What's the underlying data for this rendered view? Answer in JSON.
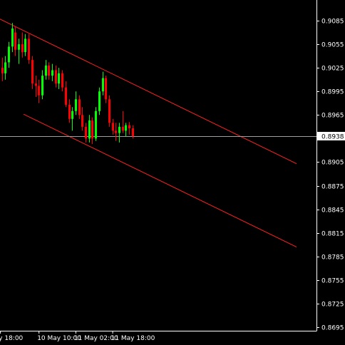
{
  "chart_data": {
    "type": "candlestick",
    "y_ticks": [
      "0.9085",
      "0.9055",
      "0.9025",
      "0.8995",
      "0.8965",
      "0.8905",
      "0.8875",
      "0.8845",
      "0.8815",
      "0.8785",
      "0.8755",
      "0.8725",
      "0.8695"
    ],
    "y_tick_values": [
      0.9085,
      0.9055,
      0.9025,
      0.8995,
      0.8965,
      0.8905,
      0.8875,
      0.8845,
      0.8815,
      0.8785,
      0.8755,
      0.8725,
      0.8695
    ],
    "ylim": [
      0.8688,
      0.9105
    ],
    "x_labels": [
      "y 18:00",
      "10 May 10:00",
      "11 May 02:00",
      "11 May 18:00"
    ],
    "x_label_index": [
      -0.5,
      11,
      22,
      33
    ],
    "current_price": 0.8938,
    "current_price_label": "0.8938",
    "colors": {
      "up": "#00ff00",
      "down": "#ff0000",
      "channel": "#ff2020",
      "price_line": "#a0a0a0",
      "axis": "#ffffff"
    },
    "channel": [
      {
        "name": "upper",
        "start": {
          "index": -2,
          "value": 0.909
        },
        "end": {
          "index": 88,
          "value": 0.8903
        }
      },
      {
        "name": "lower",
        "start": {
          "index": 6.5,
          "value": 0.8966
        },
        "end": {
          "index": 88,
          "value": 0.8797
        }
      }
    ],
    "candles": [
      {
        "o": 0.9025,
        "h": 0.9038,
        "l": 0.9008,
        "c": 0.9018
      },
      {
        "o": 0.9018,
        "h": 0.904,
        "l": 0.901,
        "c": 0.9032
      },
      {
        "o": 0.9032,
        "h": 0.9058,
        "l": 0.9025,
        "c": 0.9052
      },
      {
        "o": 0.9052,
        "h": 0.9082,
        "l": 0.9045,
        "c": 0.9075
      },
      {
        "o": 0.907,
        "h": 0.9078,
        "l": 0.904,
        "c": 0.9048
      },
      {
        "o": 0.9048,
        "h": 0.9062,
        "l": 0.903,
        "c": 0.9055
      },
      {
        "o": 0.9055,
        "h": 0.907,
        "l": 0.9038,
        "c": 0.9045
      },
      {
        "o": 0.9045,
        "h": 0.9068,
        "l": 0.904,
        "c": 0.9062
      },
      {
        "o": 0.9062,
        "h": 0.9068,
        "l": 0.903,
        "c": 0.9035
      },
      {
        "o": 0.9035,
        "h": 0.904,
        "l": 0.8998,
        "c": 0.9005
      },
      {
        "o": 0.9005,
        "h": 0.9015,
        "l": 0.8988,
        "c": 0.9002
      },
      {
        "o": 0.9002,
        "h": 0.901,
        "l": 0.898,
        "c": 0.899
      },
      {
        "o": 0.899,
        "h": 0.9022,
        "l": 0.8985,
        "c": 0.9015
      },
      {
        "o": 0.9015,
        "h": 0.9035,
        "l": 0.901,
        "c": 0.9028
      },
      {
        "o": 0.9028,
        "h": 0.9032,
        "l": 0.901,
        "c": 0.9015
      },
      {
        "o": 0.9015,
        "h": 0.903,
        "l": 0.9008,
        "c": 0.9022
      },
      {
        "o": 0.9022,
        "h": 0.9028,
        "l": 0.9,
        "c": 0.9005
      },
      {
        "o": 0.9005,
        "h": 0.9025,
        "l": 0.8998,
        "c": 0.9018
      },
      {
        "o": 0.9018,
        "h": 0.9022,
        "l": 0.8995,
        "c": 0.9
      },
      {
        "o": 0.9,
        "h": 0.9008,
        "l": 0.8975,
        "c": 0.8978
      },
      {
        "o": 0.8978,
        "h": 0.8985,
        "l": 0.8955,
        "c": 0.896
      },
      {
        "o": 0.896,
        "h": 0.8975,
        "l": 0.8945,
        "c": 0.897
      },
      {
        "o": 0.897,
        "h": 0.8995,
        "l": 0.8965,
        "c": 0.8985
      },
      {
        "o": 0.8985,
        "h": 0.899,
        "l": 0.896,
        "c": 0.8965
      },
      {
        "o": 0.8965,
        "h": 0.8975,
        "l": 0.8945,
        "c": 0.895
      },
      {
        "o": 0.895,
        "h": 0.8955,
        "l": 0.893,
        "c": 0.8935
      },
      {
        "o": 0.8935,
        "h": 0.8965,
        "l": 0.893,
        "c": 0.8958
      },
      {
        "o": 0.8958,
        "h": 0.8962,
        "l": 0.8928,
        "c": 0.8935
      },
      {
        "o": 0.8935,
        "h": 0.8975,
        "l": 0.8932,
        "c": 0.897
      },
      {
        "o": 0.897,
        "h": 0.9,
        "l": 0.8965,
        "c": 0.8995
      },
      {
        "o": 0.8995,
        "h": 0.902,
        "l": 0.899,
        "c": 0.9012
      },
      {
        "o": 0.9012,
        "h": 0.9015,
        "l": 0.898,
        "c": 0.8985
      },
      {
        "o": 0.8985,
        "h": 0.899,
        "l": 0.895,
        "c": 0.8955
      },
      {
        "o": 0.8955,
        "h": 0.896,
        "l": 0.894,
        "c": 0.8945
      },
      {
        "o": 0.8945,
        "h": 0.8955,
        "l": 0.8932,
        "c": 0.8942
      },
      {
        "o": 0.8942,
        "h": 0.8955,
        "l": 0.893,
        "c": 0.895
      },
      {
        "o": 0.895,
        "h": 0.897,
        "l": 0.8942,
        "c": 0.8945
      },
      {
        "o": 0.8945,
        "h": 0.8955,
        "l": 0.8938,
        "c": 0.8952
      },
      {
        "o": 0.8952,
        "h": 0.8956,
        "l": 0.894,
        "c": 0.8948
      },
      {
        "o": 0.8948,
        "h": 0.8952,
        "l": 0.8935,
        "c": 0.8938
      }
    ]
  }
}
